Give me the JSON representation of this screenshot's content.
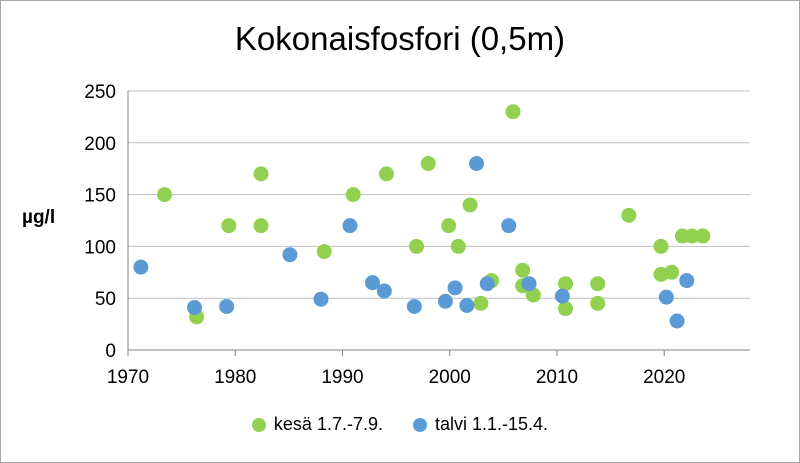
{
  "chart_data": {
    "type": "scatter",
    "title": "Kokonaisfosfori (0,5m)",
    "ylabel": "µg/l",
    "xlabel": "",
    "xlim": [
      1970,
      2028
    ],
    "ylim": [
      0,
      250
    ],
    "xticks": [
      1970,
      1980,
      1990,
      2000,
      2010,
      2020
    ],
    "yticks": [
      0,
      50,
      100,
      150,
      200,
      250
    ],
    "grid": "horizontal",
    "legend": "bottom",
    "series": [
      {
        "name": "kesä 1.7.-7.9.",
        "color": "#92d050",
        "points": [
          {
            "x": 1973.4,
            "y": 150
          },
          {
            "x": 1976.4,
            "y": 32
          },
          {
            "x": 1979.4,
            "y": 120
          },
          {
            "x": 1982.4,
            "y": 170
          },
          {
            "x": 1982.4,
            "y": 120
          },
          {
            "x": 1988.3,
            "y": 95
          },
          {
            "x": 1991.0,
            "y": 150
          },
          {
            "x": 1994.1,
            "y": 170
          },
          {
            "x": 1996.9,
            "y": 100
          },
          {
            "x": 1998.0,
            "y": 180
          },
          {
            "x": 1999.9,
            "y": 120
          },
          {
            "x": 2000.8,
            "y": 100
          },
          {
            "x": 2001.9,
            "y": 140
          },
          {
            "x": 2002.9,
            "y": 45
          },
          {
            "x": 2003.9,
            "y": 67
          },
          {
            "x": 2005.9,
            "y": 230
          },
          {
            "x": 2006.8,
            "y": 77
          },
          {
            "x": 2006.8,
            "y": 62
          },
          {
            "x": 2007.8,
            "y": 53
          },
          {
            "x": 2010.8,
            "y": 64
          },
          {
            "x": 2010.8,
            "y": 40
          },
          {
            "x": 2013.8,
            "y": 64
          },
          {
            "x": 2013.8,
            "y": 45
          },
          {
            "x": 2016.7,
            "y": 130
          },
          {
            "x": 2019.7,
            "y": 100
          },
          {
            "x": 2019.7,
            "y": 73
          },
          {
            "x": 2020.7,
            "y": 75
          },
          {
            "x": 2021.7,
            "y": 110
          },
          {
            "x": 2022.6,
            "y": 110
          },
          {
            "x": 2023.6,
            "y": 110
          }
        ]
      },
      {
        "name": "talvi 1.1.-15.4.",
        "color": "#5b9bd5",
        "points": [
          {
            "x": 1971.2,
            "y": 80
          },
          {
            "x": 1976.2,
            "y": 41
          },
          {
            "x": 1979.2,
            "y": 42
          },
          {
            "x": 1985.1,
            "y": 92
          },
          {
            "x": 1988.0,
            "y": 49
          },
          {
            "x": 1990.7,
            "y": 120
          },
          {
            "x": 1992.8,
            "y": 65
          },
          {
            "x": 1993.9,
            "y": 57
          },
          {
            "x": 1996.7,
            "y": 42
          },
          {
            "x": 1999.6,
            "y": 47
          },
          {
            "x": 2000.5,
            "y": 60
          },
          {
            "x": 2001.6,
            "y": 43
          },
          {
            "x": 2002.5,
            "y": 180
          },
          {
            "x": 2003.5,
            "y": 64
          },
          {
            "x": 2005.5,
            "y": 120
          },
          {
            "x": 2007.4,
            "y": 64
          },
          {
            "x": 2010.5,
            "y": 52
          },
          {
            "x": 2020.2,
            "y": 51
          },
          {
            "x": 2021.2,
            "y": 28
          },
          {
            "x": 2022.1,
            "y": 67
          }
        ]
      }
    ]
  }
}
